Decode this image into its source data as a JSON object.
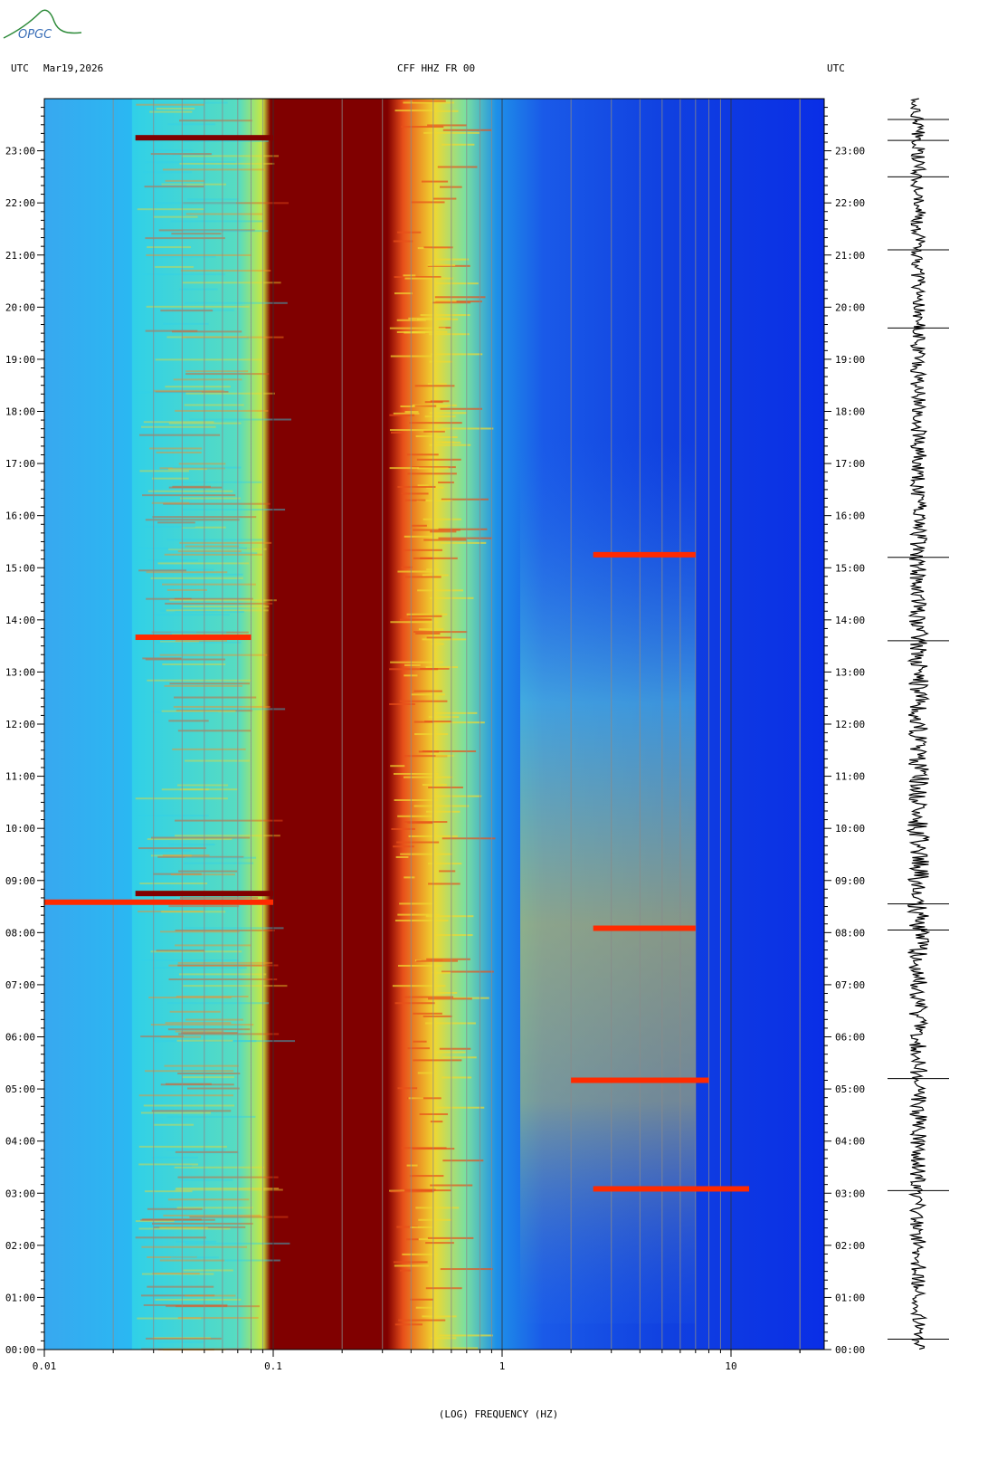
{
  "header": {
    "left_tz": "UTC",
    "date": "Mar19,2026",
    "station": "CFF HHZ FR 00",
    "right_tz": "UTC"
  },
  "logo": {
    "text": "OPGC"
  },
  "colors": {
    "low": "#0a2ee6",
    "mid_low": "#1ec8f0",
    "mid": "#e8f02a",
    "high": "#ff2a00",
    "max": "#800000",
    "seismogram": "#000000"
  },
  "chart_data": {
    "type": "heatmap",
    "title": "CFF HHZ FR 00",
    "xlabel": "(LOG) FREQUENCY (HZ)",
    "x_scale": "log",
    "x_range": [
      0.01,
      25
    ],
    "x_ticks": [
      "0.01",
      "0.1",
      "1",
      "10"
    ],
    "y_range": [
      "00:00",
      "24:00"
    ],
    "y_ticks": [
      "00:00",
      "01:00",
      "02:00",
      "03:00",
      "04:00",
      "05:00",
      "06:00",
      "07:00",
      "08:00",
      "09:00",
      "10:00",
      "11:00",
      "12:00",
      "13:00",
      "14:00",
      "15:00",
      "16:00",
      "17:00",
      "18:00",
      "19:00",
      "20:00",
      "21:00",
      "22:00",
      "23:00"
    ],
    "events": [
      {
        "time": "08:35",
        "freq_range": [
          0.01,
          0.1
        ],
        "level": "high"
      },
      {
        "time": "08:45",
        "freq_range": [
          0.025,
          0.1
        ],
        "level": "max"
      },
      {
        "time": "13:40",
        "freq_range": [
          0.025,
          0.08
        ],
        "level": "high"
      },
      {
        "time": "23:15",
        "freq_range": [
          0.025,
          0.1
        ],
        "level": "max"
      },
      {
        "time": "05:10",
        "freq_range": [
          2,
          8
        ],
        "level": "high"
      },
      {
        "time": "03:05",
        "freq_range": [
          2.5,
          12
        ],
        "level": "high"
      },
      {
        "time": "08:05",
        "freq_range": [
          2.5,
          7
        ],
        "level": "high"
      },
      {
        "time": "15:15",
        "freq_range": [
          2.5,
          7
        ],
        "level": "high"
      }
    ]
  }
}
